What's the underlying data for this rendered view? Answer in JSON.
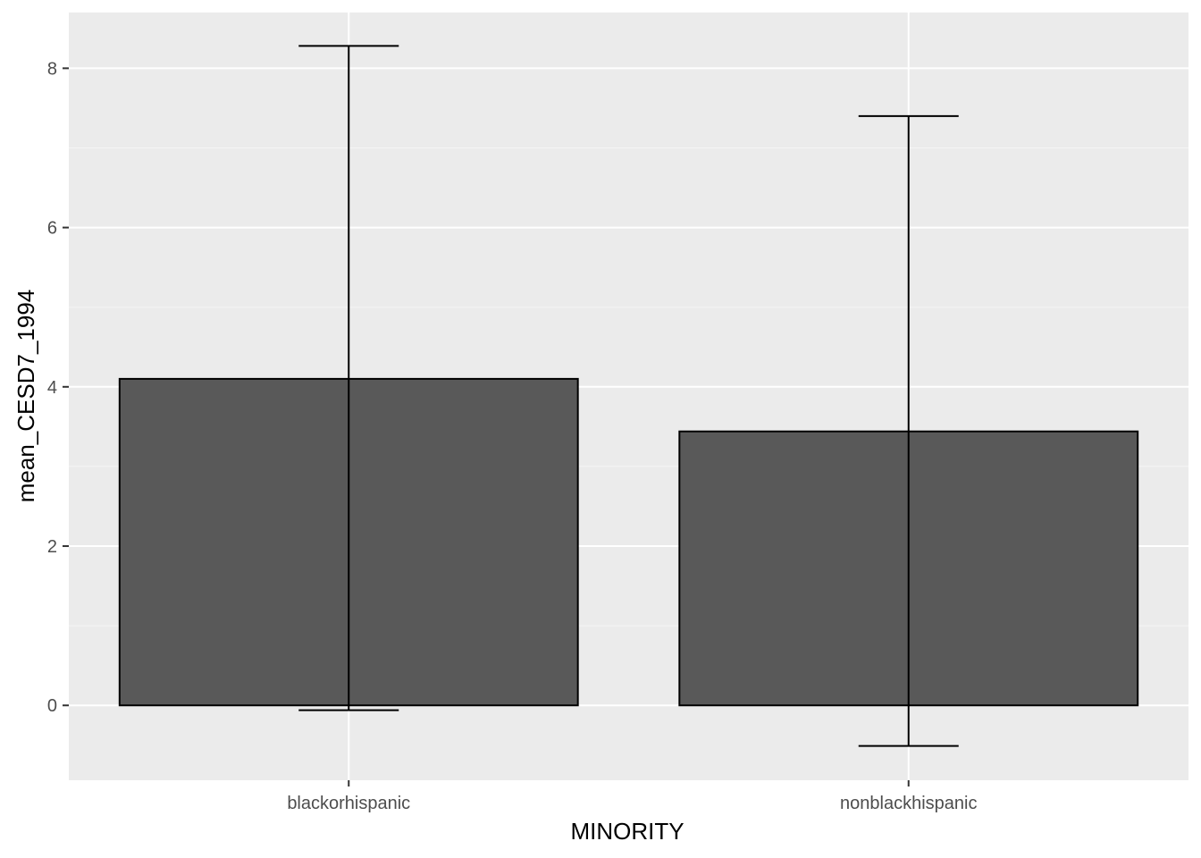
{
  "chart_data": {
    "type": "bar",
    "title": "",
    "xlabel": "MINORITY",
    "ylabel": "mean_CESD7_1994",
    "categories": [
      "blackorhispanic",
      "nonblackhispanic"
    ],
    "values": [
      4.1,
      3.44
    ],
    "error_bars": [
      {
        "lower": -0.06,
        "upper": 8.28
      },
      {
        "lower": -0.51,
        "upper": 7.4
      }
    ],
    "ylim": [
      -0.94,
      8.7
    ],
    "y_ticks": [
      0,
      2,
      4,
      6,
      8
    ],
    "grid": true,
    "legend": "none",
    "colors": {
      "panel_background": "#ebebeb",
      "grid_major": "#ffffff",
      "grid_minor": "#f5f5f5",
      "bar_fill": "#595959",
      "bar_outline": "#000000",
      "errorbar": "#000000",
      "tick_label": "#4d4d4d",
      "tick_mark": "#333333"
    }
  }
}
